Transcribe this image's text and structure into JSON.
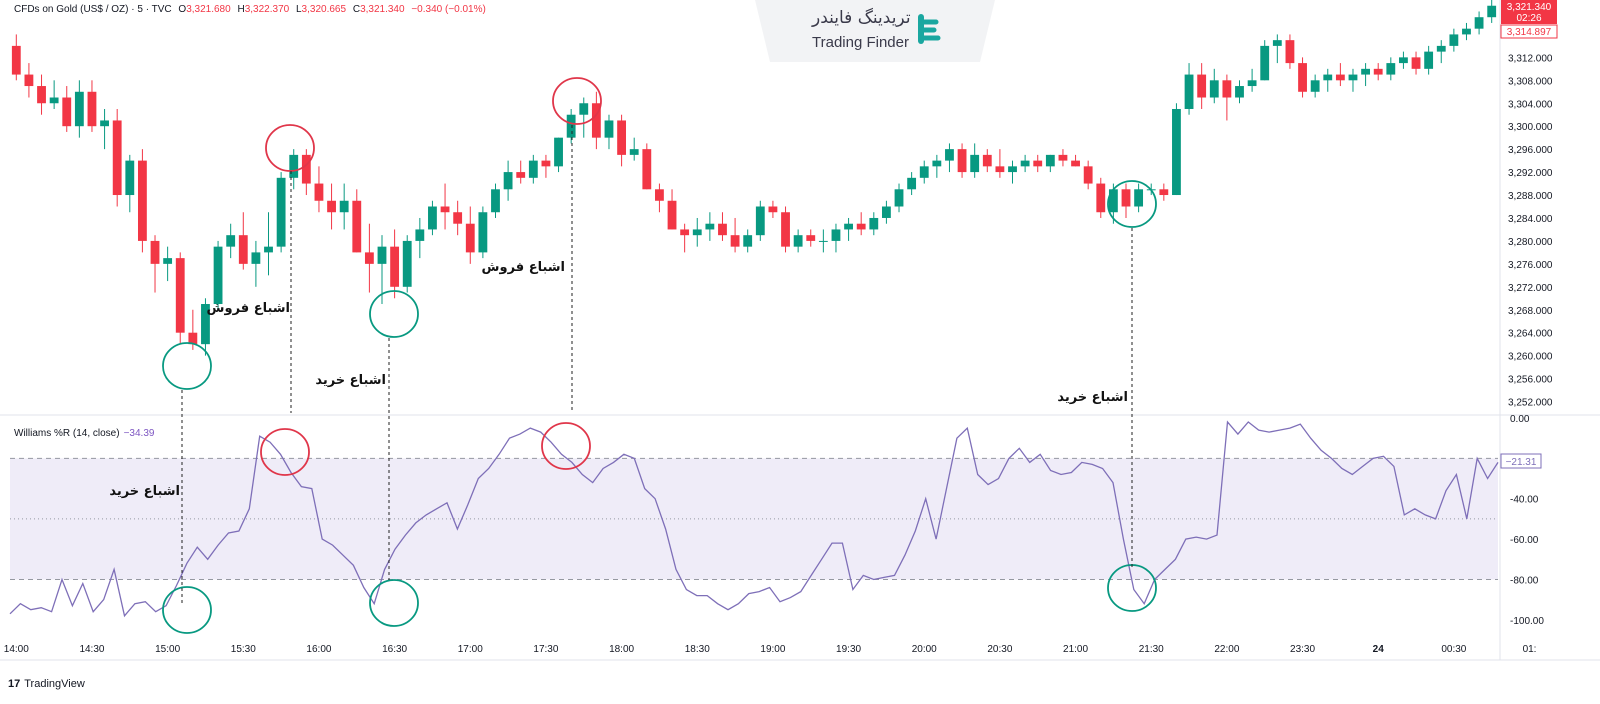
{
  "header": {
    "symbol": "CFDs on Gold (US$ / OZ) · 5 · TVC",
    "open_label": "O",
    "open": "3,321.680",
    "high_label": "H",
    "high": "3,322.370",
    "low_label": "L",
    "low": "3,320.665",
    "close_label": "C",
    "close": "3,321.340",
    "change": "−0.340 (−0.01%)"
  },
  "logo": {
    "persian": "تریدینگ فایندر",
    "english": "Trading Finder"
  },
  "indicator": {
    "label": "Williams %R (14, close)",
    "value": "−34.39"
  },
  "price_tags": {
    "last": "3,321.340",
    "countdown": "02:26",
    "prev": "3,314.897"
  },
  "indicator_tag": "−21.31",
  "brand": {
    "logo_glyph": "17",
    "name": "TradingView"
  },
  "annotations": [
    {
      "text": "اشباع فروش"
    },
    {
      "text": "اشباع خرید"
    },
    {
      "text": "اشباع فروش"
    },
    {
      "text": "اشباع خرید"
    },
    {
      "text": "اشباع خرید"
    }
  ],
  "colors": {
    "up": "#089981",
    "down": "#f23645",
    "wr_line": "#7e6fb8",
    "band": "#efecf8",
    "circle_green": "#089981",
    "circle_red": "#e0364a"
  },
  "chart_data": [
    {
      "type": "candlestick",
      "title": "CFDs on Gold (US$ / OZ) · 5 · TVC",
      "ylim": [
        3250,
        3322
      ],
      "y_ticks": [
        3252,
        3256,
        3260,
        3264,
        3268,
        3272,
        3276,
        3280,
        3284,
        3288,
        3292,
        3296,
        3300,
        3304,
        3308,
        3312
      ],
      "y_tick_labels": [
        "3,252.000",
        "3,256.000",
        "3,260.000",
        "3,264.000",
        "3,268.000",
        "3,272.000",
        "3,276.000",
        "3,280.000",
        "3,284.000",
        "3,288.000",
        "3,292.000",
        "3,296.000",
        "3,300.000",
        "3,304.000",
        "3,308.000",
        "3,312.000"
      ],
      "x_tick_labels": [
        "14:00",
        "14:30",
        "15:00",
        "15:30",
        "16:00",
        "16:30",
        "17:00",
        "17:30",
        "18:00",
        "18:30",
        "19:00",
        "19:30",
        "20:00",
        "20:30",
        "21:00",
        "21:30",
        "22:00",
        "23:30",
        "24",
        "00:30",
        "01:"
      ],
      "x_tick_index": [
        0,
        6,
        12,
        18,
        24,
        30,
        36,
        42,
        48,
        54,
        60,
        66,
        72,
        78,
        84,
        90,
        96,
        102,
        108,
        114,
        120
      ],
      "ohlc": [
        [
          3314,
          3316,
          3308,
          3309
        ],
        [
          3309,
          3311,
          3305,
          3307
        ],
        [
          3307,
          3309,
          3302,
          3304
        ],
        [
          3304,
          3308,
          3303,
          3305
        ],
        [
          3305,
          3307,
          3299,
          3300
        ],
        [
          3300,
          3308,
          3298,
          3306
        ],
        [
          3306,
          3308,
          3299,
          3300
        ],
        [
          3300,
          3303,
          3296,
          3301
        ],
        [
          3301,
          3303,
          3286,
          3288
        ],
        [
          3288,
          3295,
          3285,
          3294
        ],
        [
          3294,
          3296,
          3278,
          3280
        ],
        [
          3280,
          3281,
          3271,
          3276
        ],
        [
          3276,
          3279,
          3273,
          3277
        ],
        [
          3277,
          3278,
          3262,
          3264
        ],
        [
          3264,
          3268,
          3261,
          3262
        ],
        [
          3262,
          3270,
          3260,
          3269
        ],
        [
          3269,
          3280,
          3268,
          3279
        ],
        [
          3279,
          3283,
          3277,
          3281
        ],
        [
          3281,
          3285,
          3275,
          3276
        ],
        [
          3276,
          3280,
          3272,
          3278
        ],
        [
          3278,
          3285,
          3274,
          3279
        ],
        [
          3279,
          3292,
          3278,
          3291
        ],
        [
          3291,
          3296,
          3289,
          3295
        ],
        [
          3295,
          3296,
          3288,
          3290
        ],
        [
          3290,
          3293,
          3285,
          3287
        ],
        [
          3287,
          3290,
          3282,
          3285
        ],
        [
          3285,
          3290,
          3282,
          3287
        ],
        [
          3287,
          3289,
          3278,
          3278
        ],
        [
          3278,
          3283,
          3271,
          3276
        ],
        [
          3276,
          3281,
          3269,
          3279
        ],
        [
          3279,
          3282,
          3270,
          3272
        ],
        [
          3272,
          3281,
          3271,
          3280
        ],
        [
          3280,
          3284,
          3277,
          3282
        ],
        [
          3282,
          3287,
          3281,
          3286
        ],
        [
          3286,
          3290,
          3282,
          3285
        ],
        [
          3285,
          3287,
          3281,
          3283
        ],
        [
          3283,
          3286,
          3276,
          3278
        ],
        [
          3278,
          3286,
          3277,
          3285
        ],
        [
          3285,
          3290,
          3284,
          3289
        ],
        [
          3289,
          3294,
          3287,
          3292
        ],
        [
          3292,
          3294,
          3290,
          3291
        ],
        [
          3291,
          3295,
          3290,
          3294
        ],
        [
          3294,
          3295,
          3291,
          3293
        ],
        [
          3293,
          3298,
          3292,
          3298
        ],
        [
          3298,
          3303,
          3297,
          3302
        ],
        [
          3302,
          3305,
          3298,
          3304
        ],
        [
          3304,
          3306,
          3296,
          3298
        ],
        [
          3298,
          3302,
          3296,
          3301
        ],
        [
          3301,
          3302,
          3293,
          3295
        ],
        [
          3295,
          3298,
          3294,
          3296
        ],
        [
          3296,
          3297,
          3289,
          3289
        ],
        [
          3289,
          3290,
          3285,
          3287
        ],
        [
          3287,
          3289,
          3282,
          3282
        ],
        [
          3282,
          3283,
          3278,
          3281
        ],
        [
          3281,
          3284,
          3279,
          3282
        ],
        [
          3282,
          3285,
          3280,
          3283
        ],
        [
          3283,
          3285,
          3280,
          3281
        ],
        [
          3281,
          3284,
          3278,
          3279
        ],
        [
          3279,
          3282,
          3278,
          3281
        ],
        [
          3281,
          3287,
          3280,
          3286
        ],
        [
          3286,
          3287,
          3284,
          3285
        ],
        [
          3285,
          3286,
          3278,
          3279
        ],
        [
          3279,
          3282,
          3278,
          3281
        ],
        [
          3281,
          3282,
          3279,
          3280
        ],
        [
          3280,
          3282,
          3278,
          3280
        ],
        [
          3280,
          3283,
          3278,
          3282
        ],
        [
          3282,
          3284,
          3280,
          3283
        ],
        [
          3283,
          3285,
          3281,
          3282
        ],
        [
          3282,
          3285,
          3281,
          3284
        ],
        [
          3284,
          3287,
          3283,
          3286
        ],
        [
          3286,
          3290,
          3285,
          3289
        ],
        [
          3289,
          3292,
          3288,
          3291
        ],
        [
          3291,
          3294,
          3290,
          3293
        ],
        [
          3293,
          3295,
          3291,
          3294
        ],
        [
          3294,
          3297,
          3292,
          3296
        ],
        [
          3296,
          3297,
          3291,
          3292
        ],
        [
          3292,
          3297,
          3291,
          3295
        ],
        [
          3295,
          3296,
          3292,
          3293
        ],
        [
          3293,
          3296,
          3291,
          3292
        ],
        [
          3292,
          3294,
          3290,
          3293
        ],
        [
          3293,
          3295,
          3292,
          3294
        ],
        [
          3294,
          3295,
          3292,
          3293
        ],
        [
          3293,
          3295,
          3292,
          3295
        ],
        [
          3295,
          3296,
          3293,
          3294
        ],
        [
          3294,
          3295,
          3293,
          3293
        ],
        [
          3293,
          3294,
          3289,
          3290
        ],
        [
          3290,
          3291,
          3284,
          3285
        ],
        [
          3285,
          3290,
          3283,
          3289
        ],
        [
          3289,
          3290,
          3284,
          3286
        ],
        [
          3286,
          3290,
          3285,
          3289
        ],
        [
          3289,
          3290,
          3288,
          3289
        ],
        [
          3289,
          3290,
          3287,
          3288
        ],
        [
          3288,
          3304,
          3288,
          3303
        ],
        [
          3303,
          3311,
          3302,
          3309
        ],
        [
          3309,
          3311,
          3303,
          3305
        ],
        [
          3305,
          3310,
          3304,
          3308
        ],
        [
          3308,
          3309,
          3301,
          3305
        ],
        [
          3305,
          3308,
          3304,
          3307
        ],
        [
          3307,
          3310,
          3306,
          3308
        ],
        [
          3308,
          3315,
          3308,
          3314
        ],
        [
          3314,
          3316,
          3311,
          3315
        ],
        [
          3315,
          3316,
          3310,
          3311
        ],
        [
          3311,
          3312,
          3305,
          3306
        ],
        [
          3306,
          3309,
          3305,
          3308
        ],
        [
          3308,
          3310,
          3306,
          3309
        ],
        [
          3309,
          3311,
          3307,
          3308
        ],
        [
          3308,
          3310,
          3306,
          3309
        ],
        [
          3309,
          3311,
          3307,
          3310
        ],
        [
          3310,
          3311,
          3308,
          3309
        ],
        [
          3309,
          3312,
          3308,
          3311
        ],
        [
          3311,
          3313,
          3310,
          3312
        ],
        [
          3312,
          3313,
          3309,
          3310
        ],
        [
          3310,
          3314,
          3309,
          3313
        ],
        [
          3313,
          3315,
          3311,
          3314
        ],
        [
          3314,
          3317,
          3313,
          3316
        ],
        [
          3316,
          3318,
          3315,
          3317
        ],
        [
          3317,
          3320,
          3316,
          3319
        ],
        [
          3319,
          3322,
          3318,
          3321
        ]
      ]
    },
    {
      "type": "line",
      "title": "Williams %R (14, close)",
      "ylim": [
        -110,
        0
      ],
      "y_ticks": [
        0,
        -20,
        -40,
        -60,
        -80,
        -100
      ],
      "y_tick_labels": [
        "0.00",
        "-20.00",
        "-40.00",
        "-60.00",
        "-80.00",
        "-100.00"
      ],
      "levels": [
        -20,
        -50,
        -80
      ],
      "values": [
        -97,
        -92,
        -95,
        -94,
        -96,
        -80,
        -93,
        -82,
        -96,
        -90,
        -75,
        -98,
        -92,
        -91,
        -96,
        -93,
        -83,
        -72,
        -64,
        -70,
        -63,
        -57,
        -56,
        -45,
        -9,
        -12,
        -18,
        -27,
        -34,
        -35,
        -60,
        -63,
        -68,
        -73,
        -84,
        -92,
        -75,
        -65,
        -58,
        -52,
        -48,
        -45,
        -42,
        -55,
        -43,
        -30,
        -25,
        -18,
        -10,
        -8,
        -5,
        -7,
        -12,
        -18,
        -22,
        -28,
        -32,
        -25,
        -22,
        -18,
        -20,
        -35,
        -40,
        -55,
        -75,
        -85,
        -88,
        -88,
        -92,
        -95,
        -92,
        -87,
        -86,
        -84,
        -91,
        -89,
        -86,
        -78,
        -70,
        -62,
        -62,
        -85,
        -78,
        -80,
        -79,
        -78,
        -68,
        -56,
        -40,
        -60,
        -35,
        -10,
        -5,
        -28,
        -33,
        -30,
        -20,
        -15,
        -22,
        -18,
        -26,
        -28,
        -27,
        -22,
        -23,
        -25,
        -32,
        -60,
        -85,
        -92,
        -80,
        -75,
        -70,
        -60,
        -59,
        -60,
        -58,
        -2,
        -8,
        -2,
        -6,
        -7,
        -6,
        -5,
        -3,
        -10,
        -16,
        -20,
        -25,
        -28,
        -24,
        -20,
        -19,
        -24,
        -48,
        -45,
        -48,
        -50,
        -36,
        -28,
        -50,
        -20,
        -30,
        -22
      ]
    }
  ]
}
